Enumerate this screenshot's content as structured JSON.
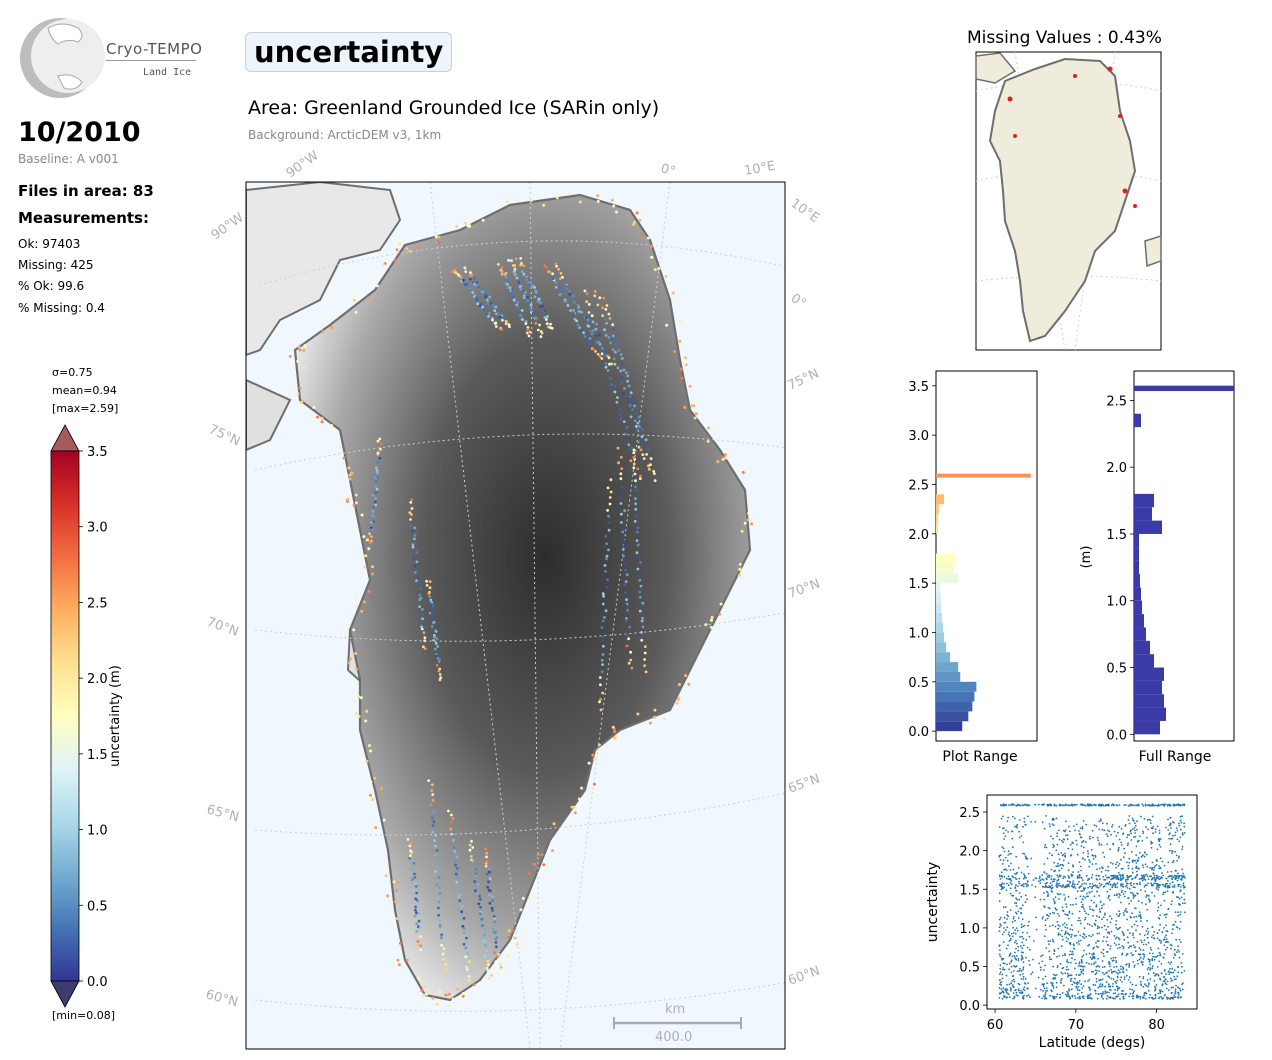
{
  "brand": {
    "name": "Cryo-TEMPO",
    "sub": "Land Ice"
  },
  "info": {
    "date": "10/2010",
    "baseline": "Baseline: A v001",
    "files": "Files in area: 83",
    "measurements_label": "Measurements:",
    "ok": "Ok: 97403",
    "missing": "Missing: 425",
    "pct_ok": "% Ok: 99.6",
    "pct_missing": "% Missing: 0.4"
  },
  "colorbar": {
    "sigma": "σ=0.75",
    "mean": "mean=0.94",
    "max": "[max=2.59]",
    "min": "[min=0.08]",
    "label": "uncertainty (m)",
    "ticks": [
      "3.5",
      "3.0",
      "2.5",
      "2.0",
      "1.5",
      "1.0",
      "0.5",
      "0.0"
    ]
  },
  "title": "uncertainty",
  "area": "Area: Greenland Grounded Ice (SARin only)",
  "background": "Background: ArcticDEM v3, 1km",
  "map": {
    "grid_labels": [
      "90°W",
      "90°W",
      "0°",
      "10°E",
      "10°E",
      "0°",
      "75°N",
      "75°N",
      "70°N",
      "70°N",
      "65°N",
      "65°N",
      "60°N",
      "60°N"
    ],
    "scalebar_unit": "km",
    "scalebar_value": "400.0"
  },
  "missing_map": {
    "title": "Missing Values : 0.43%"
  },
  "chart_data": [
    {
      "type": "bar",
      "orientation": "horizontal",
      "xlabel": "Plot Range",
      "ylim": [
        -0.1,
        3.65
      ],
      "yticks": [
        "0.0",
        "0.5",
        "1.0",
        "1.5",
        "2.0",
        "2.5",
        "3.0",
        "3.5"
      ],
      "bins": [
        {
          "y": 0.05,
          "v": 0.26
        },
        {
          "y": 0.15,
          "v": 0.32
        },
        {
          "y": 0.25,
          "v": 0.36
        },
        {
          "y": 0.35,
          "v": 0.38
        },
        {
          "y": 0.45,
          "v": 0.4
        },
        {
          "y": 0.55,
          "v": 0.24
        },
        {
          "y": 0.65,
          "v": 0.22
        },
        {
          "y": 0.75,
          "v": 0.14
        },
        {
          "y": 0.85,
          "v": 0.1
        },
        {
          "y": 0.95,
          "v": 0.08
        },
        {
          "y": 1.05,
          "v": 0.07
        },
        {
          "y": 1.15,
          "v": 0.06
        },
        {
          "y": 1.25,
          "v": 0.05
        },
        {
          "y": 1.35,
          "v": 0.05
        },
        {
          "y": 1.45,
          "v": 0.04
        },
        {
          "y": 1.55,
          "v": 0.22
        },
        {
          "y": 1.65,
          "v": 0.18
        },
        {
          "y": 1.75,
          "v": 0.2
        },
        {
          "y": 2.05,
          "v": 0.02
        },
        {
          "y": 2.15,
          "v": 0.02
        },
        {
          "y": 2.25,
          "v": 0.03
        },
        {
          "y": 2.35,
          "v": 0.08
        },
        {
          "y": 2.59,
          "v": 0.94
        }
      ]
    },
    {
      "type": "bar",
      "orientation": "horizontal",
      "xlabel": "Full Range",
      "ylabel": "(m)",
      "ylim": [
        -0.05,
        2.72
      ],
      "yticks": [
        "0.0",
        "0.5",
        "1.0",
        "1.5",
        "2.0",
        "2.5"
      ],
      "bins": [
        {
          "y": 0.05,
          "v": 0.26
        },
        {
          "y": 0.15,
          "v": 0.32
        },
        {
          "y": 0.25,
          "v": 0.3
        },
        {
          "y": 0.35,
          "v": 0.28
        },
        {
          "y": 0.45,
          "v": 0.3
        },
        {
          "y": 0.55,
          "v": 0.2
        },
        {
          "y": 0.65,
          "v": 0.16
        },
        {
          "y": 0.75,
          "v": 0.12
        },
        {
          "y": 0.85,
          "v": 0.1
        },
        {
          "y": 0.95,
          "v": 0.08
        },
        {
          "y": 1.05,
          "v": 0.07
        },
        {
          "y": 1.15,
          "v": 0.06
        },
        {
          "y": 1.25,
          "v": 0.05
        },
        {
          "y": 1.35,
          "v": 0.05
        },
        {
          "y": 1.45,
          "v": 0.05
        },
        {
          "y": 1.55,
          "v": 0.28
        },
        {
          "y": 1.65,
          "v": 0.18
        },
        {
          "y": 1.75,
          "v": 0.2
        },
        {
          "y": 2.35,
          "v": 0.07
        },
        {
          "y": 2.59,
          "v": 1.0
        }
      ]
    },
    {
      "type": "scatter",
      "xlabel": "Latitude (degs)",
      "ylabel": "uncertainty",
      "xlim": [
        59,
        85
      ],
      "ylim": [
        -0.05,
        2.72
      ],
      "xticks": [
        "60",
        "70",
        "80"
      ],
      "yticks": [
        "0.0",
        "0.5",
        "1.0",
        "1.5",
        "2.0",
        "2.5"
      ],
      "x_range": [
        60.5,
        83.5
      ],
      "y_range": [
        0.08,
        2.59
      ],
      "bands": [
        1.55,
        1.65,
        2.59
      ],
      "gap": [
        64.2,
        65.8
      ],
      "color": "#1f77b4"
    }
  ],
  "colors": {
    "accent": "#1f77b4",
    "ocean": "#f0f7ff",
    "land": "#efecdb"
  }
}
